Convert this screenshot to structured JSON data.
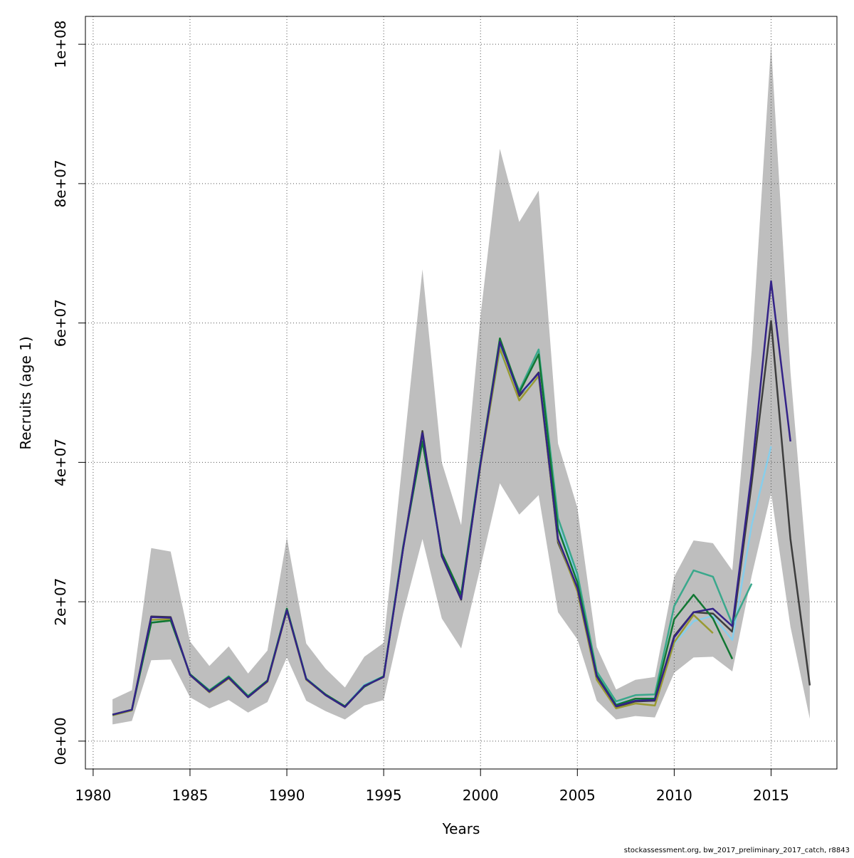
{
  "chart_data": {
    "type": "line",
    "xlabel": "Years",
    "ylabel": "Recruits (age 1)",
    "xlim": [
      1979.6,
      2018.4
    ],
    "ylim": [
      -4000000,
      104000000
    ],
    "x_ticks": [
      1980,
      1985,
      1990,
      1995,
      2000,
      2005,
      2010,
      2015
    ],
    "x_tick_labels": [
      "1980",
      "1985",
      "1990",
      "1995",
      "2000",
      "2005",
      "2010",
      "2015"
    ],
    "y_ticks": [
      0,
      20000000,
      40000000,
      60000000,
      80000000,
      100000000
    ],
    "y_tick_labels": [
      "0e+00",
      "2e+07",
      "4e+07",
      "6e+07",
      "8e+07",
      "1e+08"
    ],
    "grid": true,
    "footer": "stockassessment.org, bw_2017_preliminary_2017_catch, r8843",
    "band": {
      "color": "#bebebe",
      "x": [
        1981,
        1982,
        1983,
        1984,
        1985,
        1986,
        1987,
        1988,
        1989,
        1990,
        1991,
        1992,
        1993,
        1994,
        1995,
        1996,
        1997,
        1998,
        1999,
        2000,
        2001,
        2002,
        2003,
        2004,
        2005,
        2006,
        2007,
        2008,
        2009,
        2010,
        2011,
        2012,
        2013,
        2014,
        2015,
        2016,
        2017
      ],
      "upper": [
        6000000,
        7300000,
        27700000,
        27200000,
        14300000,
        10800000,
        13600000,
        9700000,
        13000000,
        29200000,
        14000000,
        10400000,
        7700000,
        12100000,
        14100000,
        41000000,
        67700000,
        40000000,
        31000000,
        61000000,
        85000000,
        74500000,
        79000000,
        42700000,
        33500000,
        13500000,
        7400000,
        8800000,
        9200000,
        23600000,
        28800000,
        28400000,
        24500000,
        56000000,
        100000000,
        53000000,
        20000000
      ],
      "lower": [
        2400000,
        2900000,
        11600000,
        11700000,
        6300000,
        4700000,
        5900000,
        4100000,
        5600000,
        12000000,
        5800000,
        4300000,
        3100000,
        5100000,
        5900000,
        18300000,
        29000000,
        17600000,
        13300000,
        25000000,
        37000000,
        32500000,
        35300000,
        18500000,
        14600000,
        5800000,
        3100000,
        3600000,
        3400000,
        9800000,
        12000000,
        12100000,
        10000000,
        23700000,
        35600000,
        16400000,
        3200000
      ]
    },
    "series": [
      {
        "color": "#3d3d3d",
        "x": [
          1981,
          1982,
          1983,
          1984,
          1985,
          1986,
          1987,
          1988,
          1989,
          1990,
          1991,
          1992,
          1993,
          1994,
          1995,
          1996,
          1997,
          1998,
          1999,
          2000,
          2001,
          2002,
          2003,
          2004,
          2005,
          2006,
          2007,
          2008,
          2009,
          2010,
          2011,
          2012,
          2013,
          2014,
          2015,
          2016,
          2017
        ],
        "values": [
          3800000,
          4500000,
          17900000,
          17800000,
          9500000,
          7100000,
          9100000,
          6300000,
          8600000,
          18800000,
          8900000,
          6600000,
          4900000,
          7900000,
          9200000,
          27600000,
          44500000,
          26500000,
          20300000,
          39900000,
          57500000,
          49500000,
          52900000,
          28500000,
          21800000,
          9200000,
          4900000,
          5700000,
          5800000,
          15100000,
          18500000,
          18300000,
          15700000,
          37000000,
          60300000,
          29000000,
          8000000
        ]
      },
      {
        "color": "#87ceeb",
        "x": [
          1981,
          1982,
          1983,
          1984,
          1985,
          1986,
          1987,
          1988,
          1989,
          1990,
          1991,
          1992,
          1993,
          1994,
          1995,
          1996,
          1997,
          1998,
          1999,
          2000,
          2001,
          2002,
          2003,
          2004,
          2005,
          2006,
          2007,
          2008,
          2009,
          2010,
          2011,
          2012,
          2013,
          2014,
          2015
        ],
        "values": [
          3700000,
          4400000,
          17300000,
          17500000,
          9600000,
          7300000,
          9200000,
          6500000,
          8700000,
          19000000,
          9000000,
          6700000,
          5000000,
          8100000,
          9300000,
          28000000,
          43200000,
          26800000,
          20800000,
          40000000,
          55800000,
          49800000,
          52200000,
          31000000,
          23500000,
          9600000,
          5400000,
          6000000,
          6200000,
          14000000,
          17200000,
          18000000,
          14500000,
          31000000,
          42300000
        ]
      },
      {
        "color": "#3aa88c",
        "x": [
          1981,
          1982,
          1983,
          1984,
          1985,
          1986,
          1987,
          1988,
          1989,
          1990,
          1991,
          1992,
          1993,
          1994,
          1995,
          1996,
          1997,
          1998,
          1999,
          2000,
          2001,
          2002,
          2003,
          2004,
          2005,
          2006,
          2007,
          2008,
          2009,
          2010,
          2011,
          2012,
          2013,
          2014
        ],
        "values": [
          3700000,
          4500000,
          17000000,
          17300000,
          9600000,
          7300000,
          9300000,
          6500000,
          8700000,
          19000000,
          9000000,
          6700000,
          5000000,
          8000000,
          9300000,
          28000000,
          43000000,
          26900000,
          21000000,
          40200000,
          57000000,
          50300000,
          56200000,
          32000000,
          24000000,
          10000000,
          5700000,
          6600000,
          6700000,
          19400000,
          24500000,
          23600000,
          16800000,
          22600000
        ]
      },
      {
        "color": "#9a9a33",
        "x": [
          1981,
          1982,
          1983,
          1984,
          1985,
          1986,
          1987,
          1988,
          1989,
          1990,
          1991,
          1992,
          1993,
          1994,
          1995,
          1996,
          1997,
          1998,
          1999,
          2000,
          2001,
          2002,
          2003,
          2004,
          2005,
          2006,
          2007,
          2008,
          2009,
          2010,
          2011,
          2012
        ],
        "values": [
          3700000,
          4400000,
          17400000,
          17500000,
          9500000,
          7000000,
          9000000,
          6300000,
          8500000,
          18700000,
          8800000,
          6600000,
          4900000,
          7900000,
          9200000,
          27800000,
          44000000,
          26800000,
          20800000,
          39600000,
          56300000,
          48900000,
          52400000,
          28800000,
          21500000,
          8800000,
          4700000,
          5400000,
          5100000,
          14200000,
          18100000,
          15500000
        ]
      },
      {
        "color": "#117733",
        "x": [
          1981,
          1982,
          1983,
          1984,
          1985,
          1986,
          1987,
          1988,
          1989,
          1990,
          1991,
          1992,
          1993,
          1994,
          1995,
          1996,
          1997,
          1998,
          1999,
          2000,
          2001,
          2002,
          2003,
          2004,
          2005,
          2006,
          2007,
          2008,
          2009,
          2010,
          2011,
          2012,
          2013
        ],
        "values": [
          3800000,
          4500000,
          17000000,
          17300000,
          9600000,
          7200000,
          9200000,
          6400000,
          8700000,
          19000000,
          8900000,
          6700000,
          5000000,
          7800000,
          9300000,
          27700000,
          43000000,
          27000000,
          21000000,
          40000000,
          57800000,
          50000000,
          55500000,
          30500000,
          22800000,
          9500000,
          5200000,
          6100000,
          6100000,
          17500000,
          21000000,
          17600000,
          11800000
        ]
      },
      {
        "color": "#332288",
        "x": [
          1981,
          1982,
          1983,
          1984,
          1985,
          1986,
          1987,
          1988,
          1989,
          1990,
          1991,
          1992,
          1993,
          1994,
          1995,
          1996,
          1997,
          1998,
          1999,
          2000,
          2001,
          2002,
          2003,
          2004,
          2005,
          2006,
          2007,
          2008,
          2009,
          2010,
          2011,
          2012,
          2013,
          2014,
          2015,
          2016
        ],
        "values": [
          3800000,
          4500000,
          17800000,
          17700000,
          9500000,
          7100000,
          9100000,
          6300000,
          8600000,
          18800000,
          8900000,
          6600000,
          4900000,
          7900000,
          9200000,
          27600000,
          44200000,
          26600000,
          20400000,
          39800000,
          57300000,
          49700000,
          52800000,
          29000000,
          22000000,
          9300000,
          5000000,
          5800000,
          5900000,
          14900000,
          18500000,
          19000000,
          16500000,
          38500000,
          66000000,
          43000000
        ]
      }
    ]
  }
}
